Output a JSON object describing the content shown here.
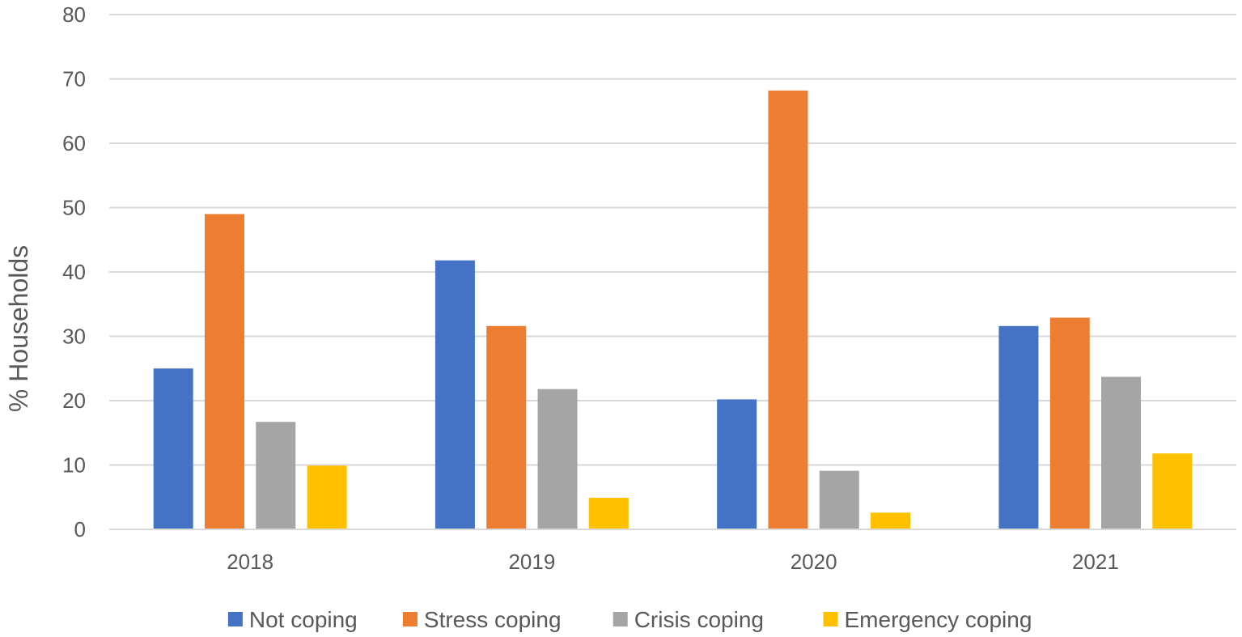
{
  "chart_data": {
    "type": "bar",
    "title": "",
    "xlabel": "",
    "ylabel": "% Households",
    "ylim": [
      0,
      80
    ],
    "yticks": [
      0,
      10,
      20,
      30,
      40,
      50,
      60,
      70,
      80
    ],
    "grid": true,
    "legend_position": "bottom",
    "categories": [
      "2018",
      "2019",
      "2020",
      "2021"
    ],
    "series": [
      {
        "name": "Not coping",
        "color": "#4472C4",
        "values": [
          25,
          41.8,
          20.2,
          31.6
        ]
      },
      {
        "name": "Stress coping",
        "color": "#ED7D31",
        "values": [
          49,
          31.6,
          68.2,
          32.9
        ]
      },
      {
        "name": "Crisis coping",
        "color": "#A5A5A5",
        "values": [
          16.7,
          21.8,
          9.1,
          23.7
        ]
      },
      {
        "name": "Emergency coping",
        "color": "#FFC000",
        "values": [
          9.9,
          4.9,
          2.6,
          11.8
        ]
      }
    ]
  }
}
